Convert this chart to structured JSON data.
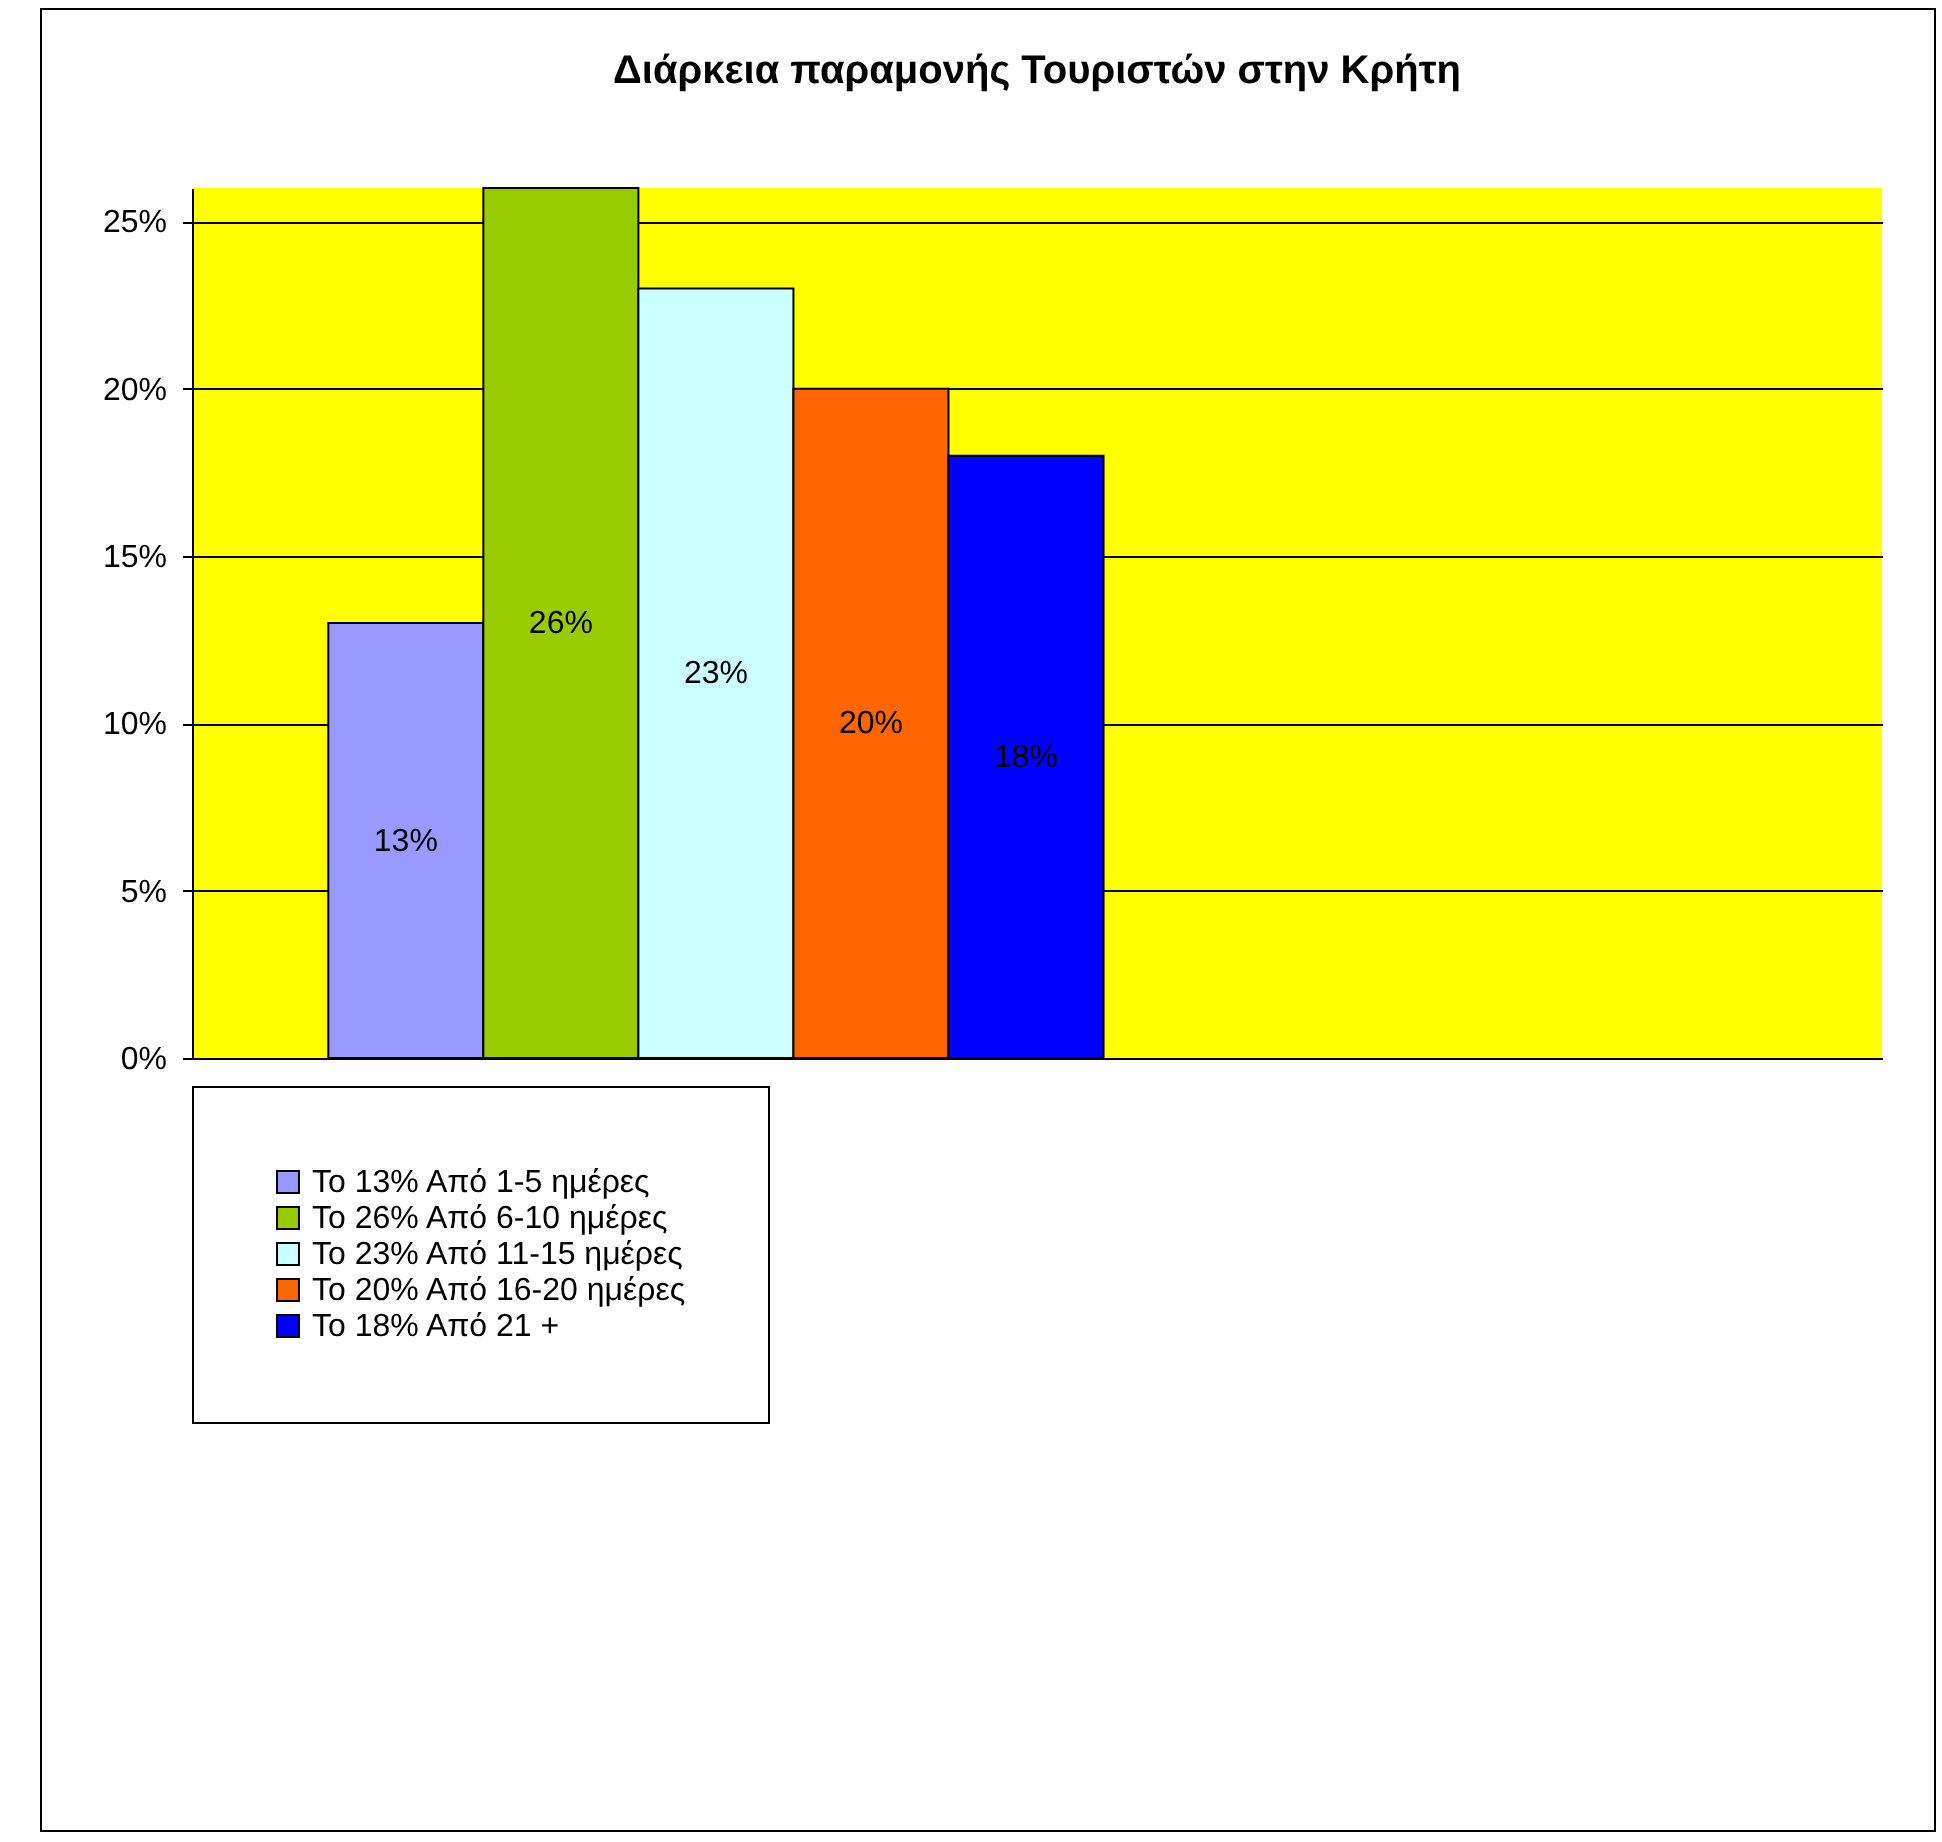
{
  "chart_data": {
    "type": "bar",
    "title": "Διάρκεια παραμονής Τουριστών στην Κρήτη",
    "categories": [
      null
    ],
    "series": [
      {
        "name": "Το  13%  Από 1-5 ημέρες",
        "color": "#9999ff",
        "values": [
          13
        ],
        "value_labels": [
          "13%"
        ]
      },
      {
        "name": "Το 26% Από 6-10 ημέρες",
        "color": "#99cc00",
        "values": [
          26
        ],
        "value_labels": [
          "26%"
        ]
      },
      {
        "name": "Το 23% Από 11-15 ημέρες",
        "color": "#ccffff",
        "values": [
          23
        ],
        "value_labels": [
          "23%"
        ]
      },
      {
        "name": "Το 20% Από 16-20 ημέρες",
        "color": "#ff6600",
        "values": [
          20
        ],
        "value_labels": [
          "20%"
        ]
      },
      {
        "name": "Το 18% Από 21 +",
        "color": "#0000ff",
        "values": [
          18
        ],
        "value_labels": [
          "18%"
        ]
      }
    ],
    "ylim": [
      0,
      26
    ],
    "yticks": [
      {
        "value": 0,
        "label": "0%"
      },
      {
        "value": 5,
        "label": "5%"
      },
      {
        "value": 10,
        "label": "10%"
      },
      {
        "value": 15,
        "label": "15%"
      },
      {
        "value": 20,
        "label": "20%"
      },
      {
        "value": 25,
        "label": "25%"
      }
    ],
    "grid": "y",
    "legend": "bottom"
  }
}
